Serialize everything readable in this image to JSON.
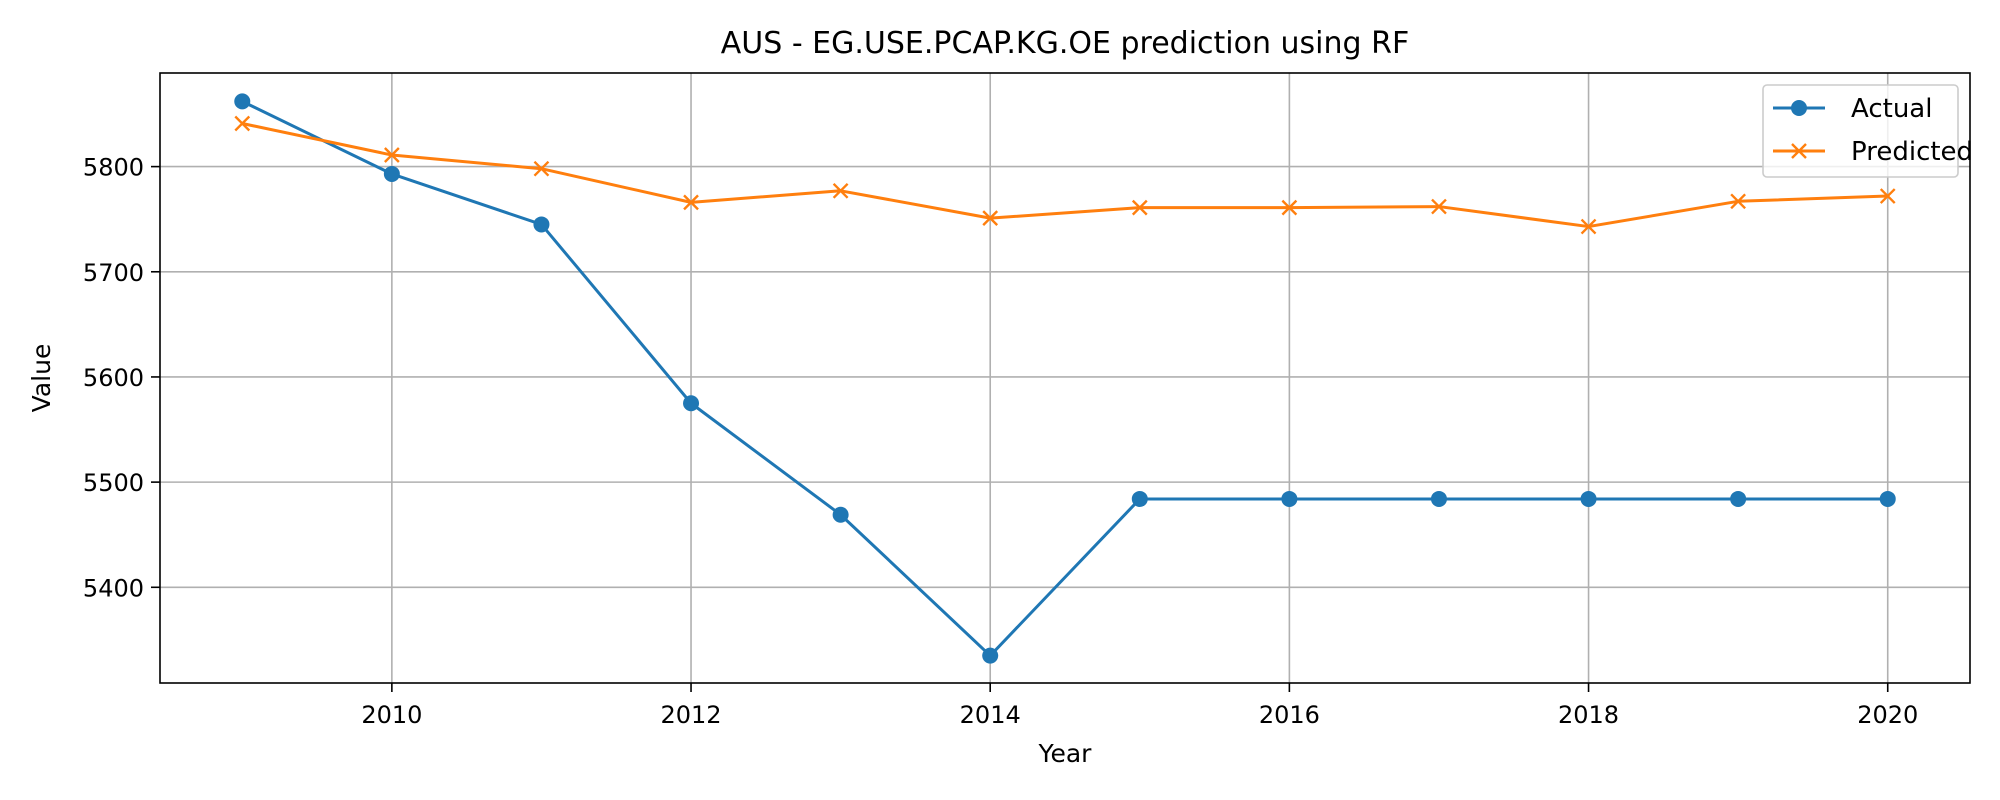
{
  "chart_data": {
    "type": "line",
    "title": "AUS - EG.USE.PCAP.KG.OE prediction using RF",
    "xlabel": "Year",
    "ylabel": "Value",
    "x": [
      2009,
      2010,
      2011,
      2012,
      2013,
      2014,
      2015,
      2016,
      2017,
      2018,
      2019,
      2020
    ],
    "xlim": [
      2008.45,
      2020.55
    ],
    "ylim": [
      5309,
      5889
    ],
    "xticks": [
      2010,
      2012,
      2014,
      2016,
      2018,
      2020
    ],
    "yticks": [
      5400,
      5500,
      5600,
      5700,
      5800
    ],
    "grid": true,
    "legend_position": "top-right",
    "series": [
      {
        "name": "Actual",
        "color": "#1f77b4",
        "marker": "circle",
        "values": [
          5862,
          5793,
          5745,
          5575,
          5469,
          5335,
          5484,
          5484,
          5484,
          5484,
          5484,
          5484
        ]
      },
      {
        "name": "Predicted",
        "color": "#ff7f0e",
        "marker": "x",
        "values": [
          5841,
          5811,
          5798,
          5766,
          5777,
          5751,
          5761,
          5761,
          5762,
          5743,
          5767,
          5772
        ]
      }
    ]
  }
}
